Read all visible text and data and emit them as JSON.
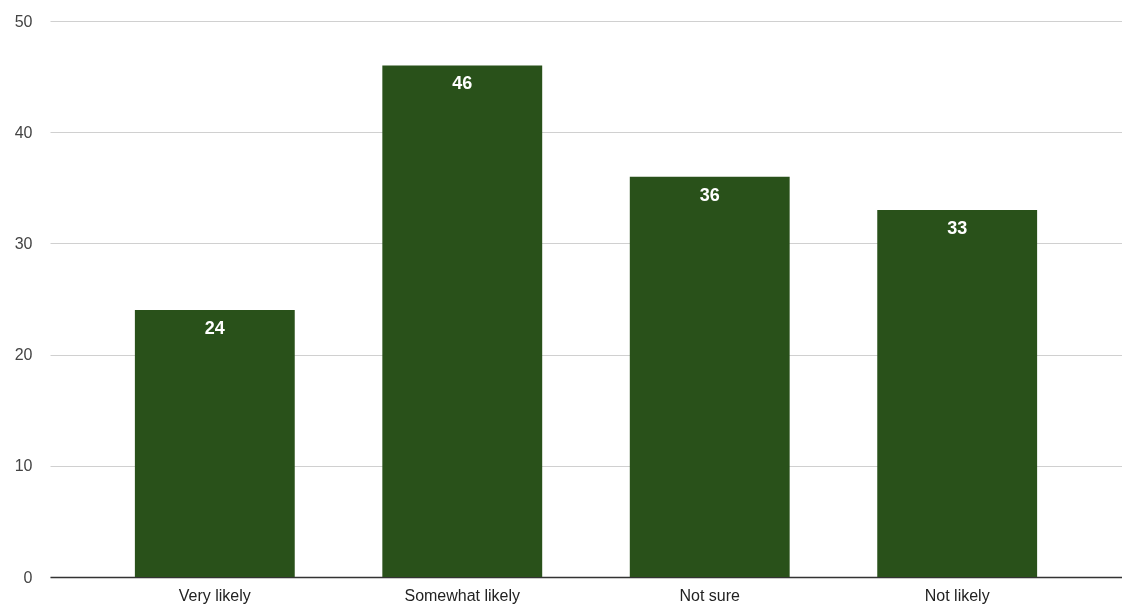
{
  "chart_data": {
    "type": "bar",
    "categories": [
      "Very likely",
      "Somewhat likely",
      "Not sure",
      "Not likely"
    ],
    "values": [
      24,
      46,
      36,
      33
    ],
    "color": "#29511a",
    "ylim": [
      0,
      50
    ],
    "yticks": [
      0,
      10,
      20,
      30,
      40,
      50
    ],
    "grid": "y",
    "data_labels": true
  }
}
